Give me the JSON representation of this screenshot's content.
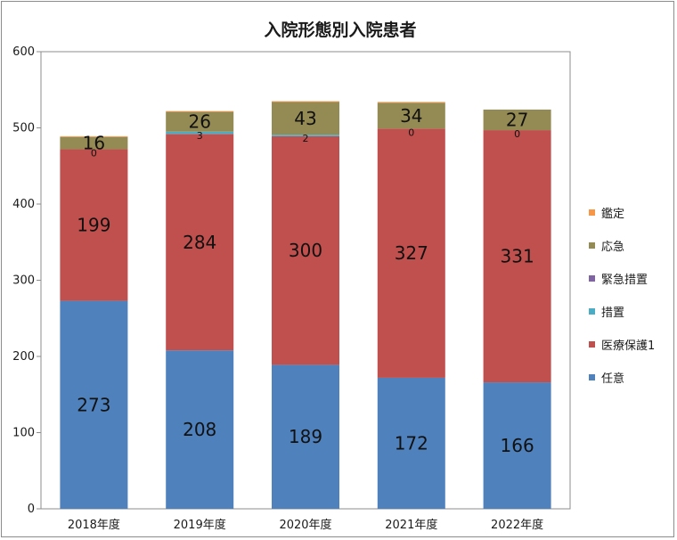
{
  "chart_data": {
    "type": "bar",
    "stacked": true,
    "title": "入院形態別入院患者",
    "categories": [
      "2018年度",
      "2019年度",
      "2020年度",
      "2021年度",
      "2022年度"
    ],
    "ylim": [
      0,
      600
    ],
    "yticks": [
      0,
      100,
      200,
      300,
      400,
      500,
      600
    ],
    "grid": false,
    "legend": "right",
    "series": [
      {
        "name": "任意",
        "color": "#4f81bd",
        "values": [
          273,
          208,
          189,
          172,
          166
        ],
        "labels": [
          "273",
          "208",
          "189",
          "172",
          "166"
        ]
      },
      {
        "name": "医療保護1",
        "color": "#c0504d",
        "values": [
          199,
          284,
          300,
          327,
          331
        ],
        "labels": [
          "199",
          "284",
          "300",
          "327",
          "331"
        ]
      },
      {
        "name": "措置",
        "color": "#4bacc6",
        "values": [
          0,
          3,
          2,
          0,
          0
        ],
        "labels": [
          "0",
          "3",
          "2",
          "0",
          "0"
        ]
      },
      {
        "name": "緊急措置",
        "color": "#8064a2",
        "values": [
          0,
          0,
          0,
          0,
          0
        ],
        "labels": []
      },
      {
        "name": "応急",
        "color": "#948a54",
        "values": [
          16,
          26,
          43,
          34,
          27
        ],
        "labels": [
          "16",
          "26",
          "43",
          "34",
          "27"
        ]
      },
      {
        "name": "鑑定",
        "color": "#f79646",
        "values": [
          1,
          1,
          1,
          1,
          0
        ],
        "labels": []
      }
    ]
  }
}
